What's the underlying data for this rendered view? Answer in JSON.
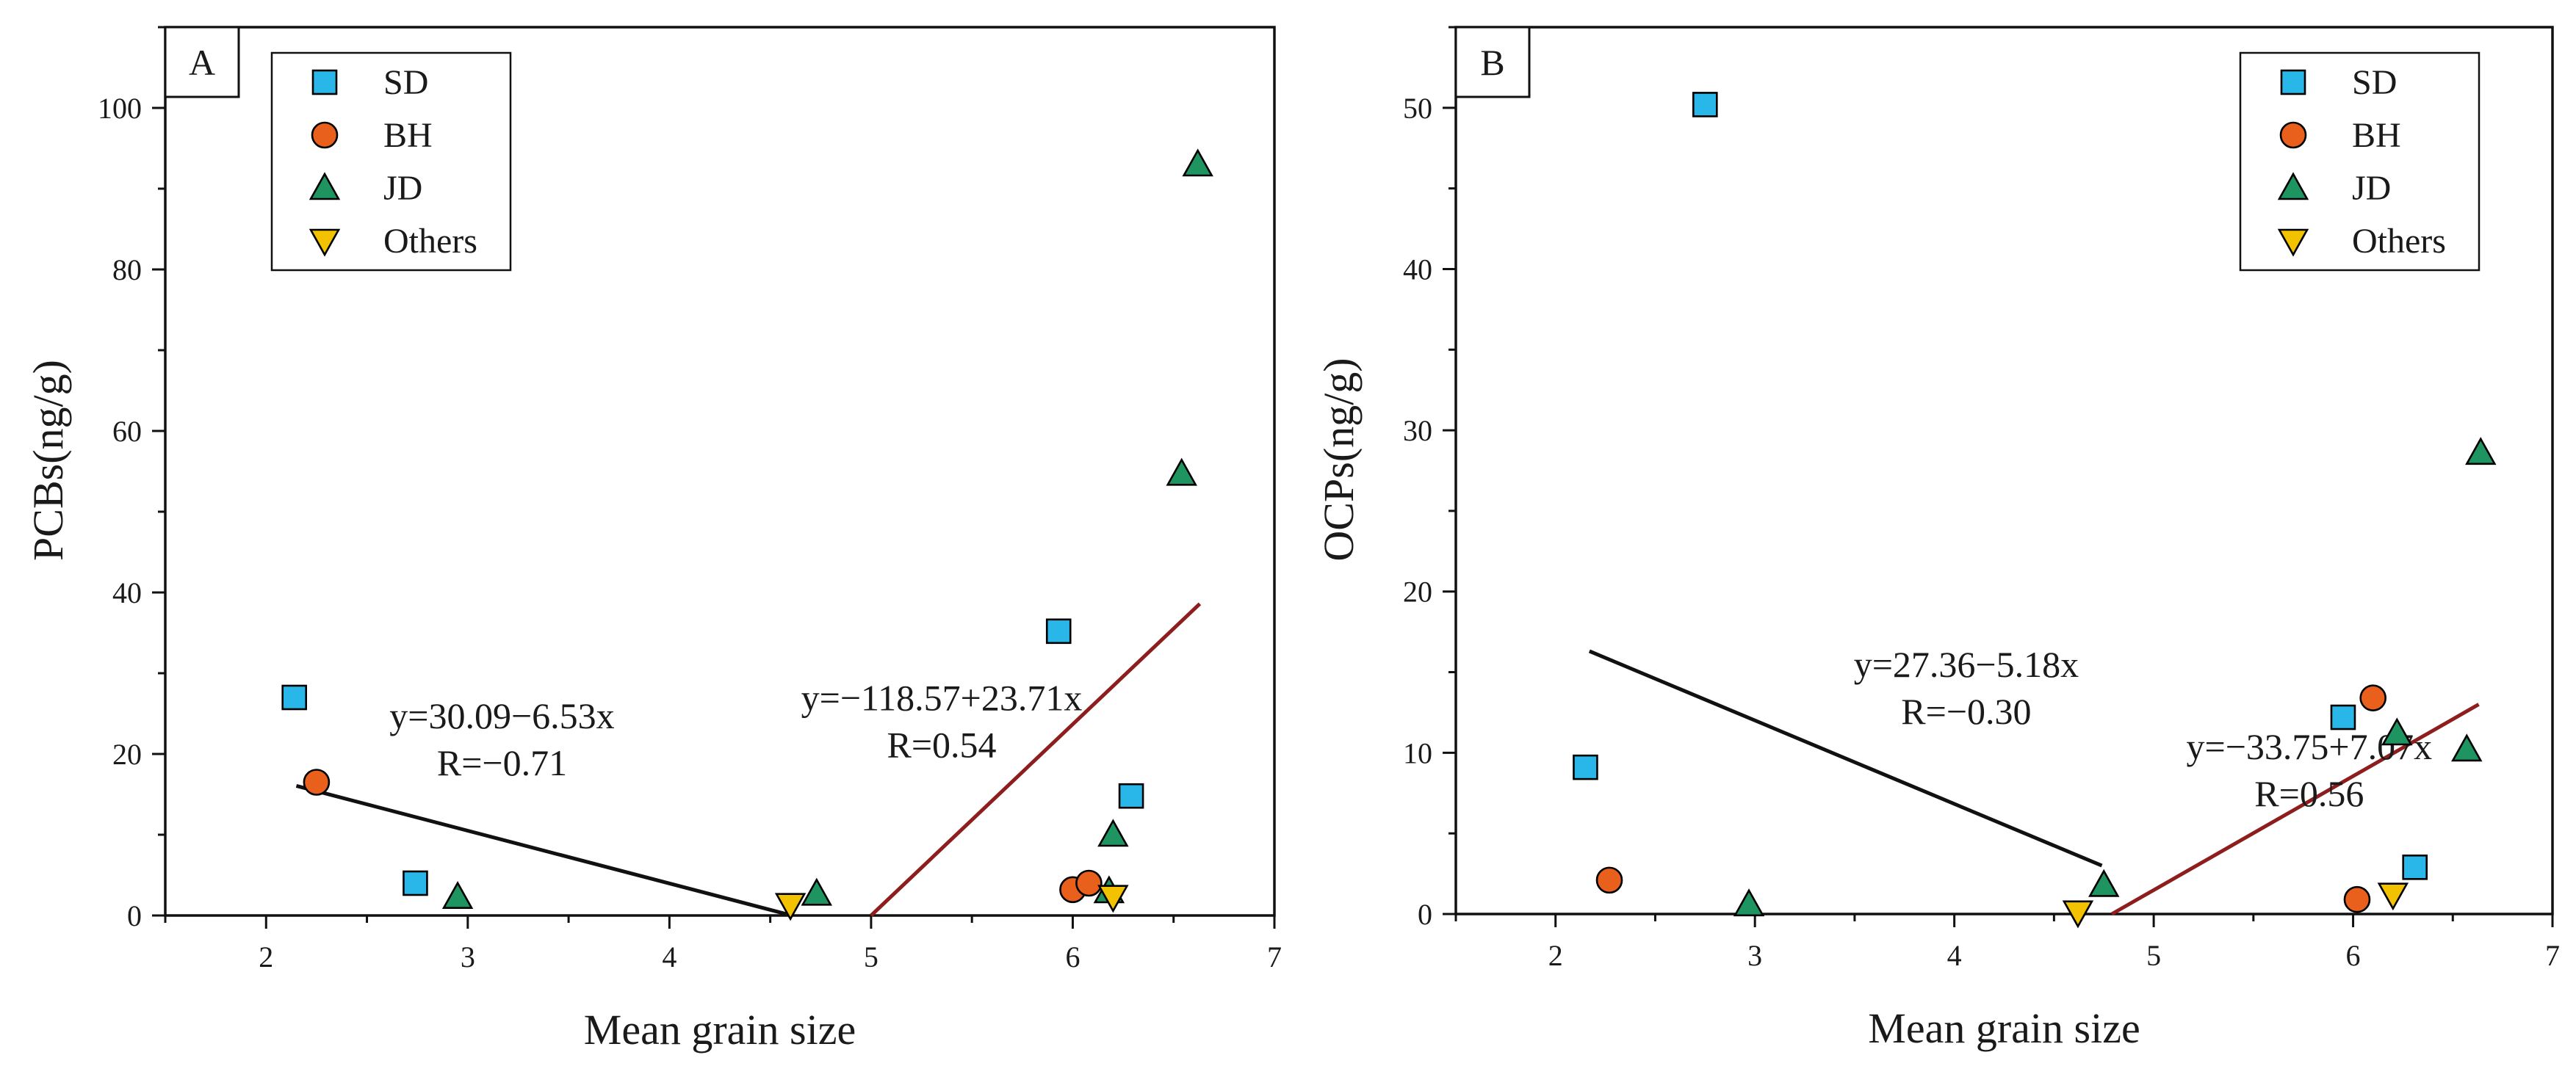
{
  "chart_data": [
    {
      "type": "scatter",
      "panel_label": "A",
      "xlabel": "Mean grain size",
      "ylabel": "PCBs(ng/g)",
      "xlim": [
        1.5,
        7
      ],
      "ylim": [
        0,
        110
      ],
      "xticks": [
        2,
        3,
        4,
        5,
        6,
        7
      ],
      "yticks": [
        0,
        20,
        40,
        60,
        80,
        100
      ],
      "legend_position": "top-left",
      "series": [
        {
          "name": "SD",
          "marker": "square",
          "color": "#29b6e8",
          "points": [
            [
              2.14,
              27.0
            ],
            [
              2.74,
              4.0
            ],
            [
              5.93,
              35.2
            ],
            [
              6.29,
              14.8
            ]
          ]
        },
        {
          "name": "BH",
          "marker": "circle",
          "color": "#e8601c",
          "points": [
            [
              2.25,
              16.5
            ],
            [
              6.0,
              3.2
            ],
            [
              6.08,
              4.0
            ]
          ]
        },
        {
          "name": "JD",
          "marker": "triangle-up",
          "color": "#1e9460",
          "points": [
            [
              2.95,
              2.3
            ],
            [
              4.73,
              2.7
            ],
            [
              6.18,
              3.0
            ],
            [
              6.2,
              10.0
            ],
            [
              6.54,
              54.7
            ],
            [
              6.62,
              93.0
            ]
          ]
        },
        {
          "name": "Others",
          "marker": "triangle-down",
          "color": "#f2c200",
          "points": [
            [
              4.6,
              1.3
            ],
            [
              6.2,
              2.3
            ]
          ]
        }
      ],
      "fit_lines": [
        {
          "color": "#111111",
          "x": [
            2.15,
            4.58
          ],
          "y": [
            16.05,
            0.18
          ],
          "equation": "y=30.09−6.53x",
          "r_label": "R=−0.71",
          "label_x": 3.17,
          "label_y": 23.2
        },
        {
          "color": "#8e1e1e",
          "x": [
            5.0,
            6.63
          ],
          "y": [
            0.0,
            38.6
          ],
          "equation": "y=−118.57+23.71x",
          "r_label": "R=0.54",
          "label_x": 5.35,
          "label_y": 25.4
        }
      ]
    },
    {
      "type": "scatter",
      "panel_label": "B",
      "xlabel": "Mean grain size",
      "ylabel": "OCPs(ng/g)",
      "xlim": [
        1.5,
        7
      ],
      "ylim": [
        0,
        55
      ],
      "xticks": [
        2,
        3,
        4,
        5,
        6,
        7
      ],
      "yticks": [
        0,
        10,
        20,
        30,
        40,
        50
      ],
      "legend_position": "top-right",
      "series": [
        {
          "name": "SD",
          "marker": "square",
          "color": "#29b6e8",
          "points": [
            [
              2.15,
              9.1
            ],
            [
              2.75,
              50.2
            ],
            [
              5.95,
              12.2
            ],
            [
              6.31,
              2.9
            ]
          ]
        },
        {
          "name": "BH",
          "marker": "circle",
          "color": "#e8601c",
          "points": [
            [
              2.27,
              2.1
            ],
            [
              6.02,
              0.9
            ],
            [
              6.1,
              13.4
            ]
          ]
        },
        {
          "name": "JD",
          "marker": "triangle-up",
          "color": "#1e9460",
          "points": [
            [
              2.97,
              0.6
            ],
            [
              4.75,
              1.8
            ],
            [
              6.22,
              11.2
            ],
            [
              6.57,
              10.2
            ],
            [
              6.64,
              28.6
            ]
          ]
        },
        {
          "name": "Others",
          "marker": "triangle-down",
          "color": "#f2c200",
          "points": [
            [
              4.62,
              0.1
            ],
            [
              6.2,
              1.2
            ]
          ]
        }
      ],
      "fit_lines": [
        {
          "color": "#111111",
          "x": [
            2.17,
            4.74
          ],
          "y": [
            16.3,
            3.0
          ],
          "equation": "y=27.36−5.18x",
          "r_label": "R=−0.30",
          "label_x": 4.06,
          "label_y": 14.7
        },
        {
          "color": "#8e1e1e",
          "x": [
            4.79,
            6.63
          ],
          "y": [
            0.0,
            13.0
          ],
          "equation": "y=−33.75+7.07x",
          "r_label": "R=0.56",
          "label_x": 5.78,
          "label_y": 9.6
        }
      ]
    }
  ]
}
